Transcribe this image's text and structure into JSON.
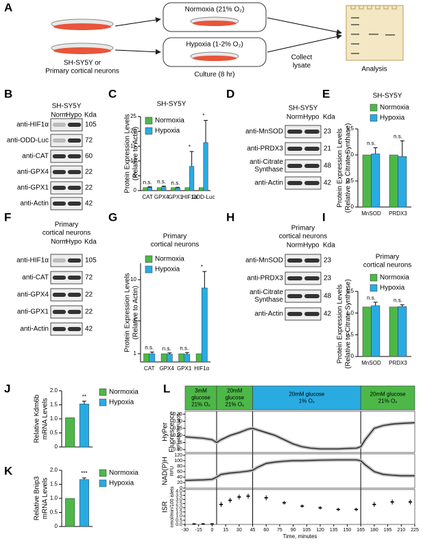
{
  "panel_labels": [
    "A",
    "B",
    "C",
    "D",
    "E",
    "F",
    "G",
    "H",
    "I",
    "J",
    "K",
    "L"
  ],
  "schematic": {
    "source": [
      "SH-SY5Y or",
      "Primary cortical neurons"
    ],
    "conditions": [
      "Normoxia (21% O₂)",
      "Hypoxia (1-2% O₂)"
    ],
    "culture": "Culture (8 hr)",
    "collect": [
      "Collect",
      "lysate"
    ],
    "analysis": "Analysis"
  },
  "blots": [
    {
      "title": [
        "SH-SY5Y"
      ],
      "lanes": [
        "Norm",
        "Hypo"
      ],
      "unit": "Kda",
      "rows": [
        {
          "label": [
            "anti-HIF1α"
          ],
          "kda": "105"
        },
        {
          "label": [
            "anti-ODD-Luc"
          ],
          "kda": "72"
        },
        {
          "label": [
            "anti-CAT"
          ],
          "kda": "60"
        },
        {
          "label": [
            "anti-GPX4"
          ],
          "kda": "22"
        },
        {
          "label": [
            "anti-GPX1"
          ],
          "kda": "22"
        },
        {
          "label": [
            "anti-Actin"
          ],
          "kda": "42"
        }
      ]
    },
    {
      "title": [
        "SH-SY5Y"
      ],
      "lanes": [
        "Norm",
        "Hypo"
      ],
      "unit": "Kda",
      "rows": [
        {
          "label": [
            "anti-MnSOD"
          ],
          "kda": "23"
        },
        {
          "label": [
            "anti-PRDX3"
          ],
          "kda": "21"
        },
        {
          "label": [
            "anti-Citrate",
            "Synthase"
          ],
          "kda": "48"
        },
        {
          "label": [
            "anti-Actin"
          ],
          "kda": "42"
        }
      ]
    },
    {
      "title": [
        "Primary",
        "cortical neurons"
      ],
      "lanes": [
        "Norm",
        "Hypo"
      ],
      "unit": "Kda",
      "rows": [
        {
          "label": [
            "anti-HIF1α"
          ],
          "kda": "105"
        },
        {
          "label": [
            "anti-CAT"
          ],
          "kda": "72"
        },
        {
          "label": [
            "anti-GPX4"
          ],
          "kda": "22"
        },
        {
          "label": [
            "anti-GPX1"
          ],
          "kda": "22"
        },
        {
          "label": [
            "anti-Actin"
          ],
          "kda": "42"
        }
      ]
    },
    {
      "title": [
        "Primary",
        "cortical neurons"
      ],
      "lanes": [
        "Norm",
        "Hypo"
      ],
      "unit": "Kda",
      "rows": [
        {
          "label": [
            "anti-MnSOD"
          ],
          "kda": "23"
        },
        {
          "label": [
            "anti-PRDX3"
          ],
          "kda": "23"
        },
        {
          "label": [
            "anti-Citrate",
            "Synthase"
          ],
          "kda": "48"
        },
        {
          "label": [
            "anti-Actin"
          ],
          "kda": "42"
        }
      ]
    }
  ],
  "chart_data": [
    {
      "type": "bar",
      "title": [
        "SH-SY5Y"
      ],
      "ylabel": [
        "Protein Expression Levels",
        "(Relative to Actin)"
      ],
      "categories": [
        "CAT",
        "GPX4",
        "GPX1",
        "HIF1α",
        "ODD-Luc"
      ],
      "series": [
        {
          "name": "Normoxia",
          "color": "#4db848",
          "values": [
            1,
            1,
            1,
            1,
            1
          ]
        },
        {
          "name": "Hypoxia",
          "color": "#29abe2",
          "values": [
            1.1,
            1.2,
            0.9,
            8.2,
            16.2
          ],
          "errors": [
            0.2,
            0.3,
            0.2,
            5,
            7.5
          ]
        }
      ],
      "annotations": [
        "n.s.",
        "n.s.",
        "n.s.",
        "*",
        "*"
      ],
      "ylim": [
        0,
        25
      ],
      "yticks": [
        0,
        5,
        10,
        15,
        20,
        25
      ]
    },
    {
      "type": "bar",
      "title": [
        "SH-SY5Y"
      ],
      "ylabel": [
        "Protein Expression Levels",
        "(Relative to Citrate Synthase)"
      ],
      "categories": [
        "MnSOD",
        "PRDX3"
      ],
      "series": [
        {
          "name": "Normoxia",
          "color": "#4db848",
          "values": [
            1,
            1
          ]
        },
        {
          "name": "Hypoxia",
          "color": "#29abe2",
          "values": [
            1.02,
            0.97
          ],
          "errors": [
            0.12,
            0.3
          ]
        }
      ],
      "annotations": [
        "n.s.",
        "n.s."
      ],
      "ylim": [
        0,
        1.5
      ],
      "yticks": [
        0,
        0.5,
        {
          "value": 1,
          "label": "1.0"
        },
        1.5
      ]
    },
    {
      "type": "bar",
      "title": [
        "Primary",
        "cortical neurons"
      ],
      "ylabel": [
        "Protein Expression Levels",
        "(Relative to Actin)"
      ],
      "categories": [
        "CAT",
        "GPX4",
        "GPX1",
        "HIF1α"
      ],
      "series": [
        {
          "name": "Normoxia",
          "color": "#4db848",
          "values": [
            1,
            1,
            1,
            1
          ]
        },
        {
          "name": "Hypoxia",
          "color": "#29abe2",
          "values": [
            1,
            0.95,
            0.95,
            9
          ],
          "errors": [
            0.2,
            0.15,
            0.2,
            2
          ]
        }
      ],
      "annotations": [
        "n.s.",
        "n.s.",
        "n.s.",
        "*"
      ],
      "ylim": [
        0,
        12
      ],
      "yticks": [
        1,
        5,
        10
      ]
    },
    {
      "type": "bar",
      "title": [
        "Primary",
        "cortical neurons"
      ],
      "ylabel": [
        "Protein Expression Levels",
        "(Relative to Citrate Synthase)"
      ],
      "categories": [
        "MnSOD",
        "PRDX3"
      ],
      "series": [
        {
          "name": "Normoxia",
          "color": "#4db848",
          "values": [
            1.14,
            1.14
          ]
        },
        {
          "name": "Hypoxia",
          "color": "#29abe2",
          "values": [
            1.17,
            1.15
          ],
          "errors": [
            0.08,
            0.04
          ]
        }
      ],
      "annotations": [
        "n.s.",
        "n.s."
      ],
      "ylim": [
        0,
        1.5
      ],
      "yticks": [
        0,
        0.5,
        {
          "value": 1,
          "label": "1.0"
        },
        1.5
      ]
    },
    {
      "type": "bar",
      "ylabel": [
        "Relative Kdm6b",
        "mRNA Levels"
      ],
      "series": [
        {
          "name": "Normoxia",
          "color": "#4db848",
          "values": [
            1.04
          ]
        },
        {
          "name": "Hypoxia",
          "color": "#29abe2",
          "values": [
            1.53
          ],
          "errors": [
            0.1
          ]
        }
      ],
      "annotations": [
        "**"
      ],
      "ylim": [
        0,
        2
      ],
      "yticks": [
        0,
        0.5,
        {
          "value": 1,
          "label": "1.0"
        },
        1.5,
        {
          "value": 2,
          "label": "2.0"
        }
      ]
    },
    {
      "type": "bar",
      "ylabel": [
        "Relative Bnip3",
        "mRNA Levels"
      ],
      "series": [
        {
          "name": "Normoxia",
          "color": "#4db848",
          "values": [
            1
          ]
        },
        {
          "name": "Hypoxia",
          "color": "#29abe2",
          "values": [
            1.67
          ],
          "errors": [
            0.06
          ]
        }
      ],
      "annotations": [
        "***"
      ],
      "ylim": [
        0,
        2
      ],
      "yticks": [
        0,
        0.5,
        {
          "value": 1,
          "label": "1.0"
        },
        1.5,
        {
          "value": 2,
          "label": "2.0"
        }
      ]
    },
    {
      "type": "timecourse",
      "xlabel": "Time, minutes",
      "xlim": [
        -30,
        225
      ],
      "xticks": [
        -30,
        -15,
        0,
        15,
        30,
        45,
        60,
        75,
        90,
        105,
        120,
        135,
        150,
        165,
        180,
        195,
        210,
        225
      ],
      "conditions": [
        {
          "label": [
            "3mM",
            "glucose",
            "21% O₂"
          ],
          "start": -30,
          "end": 5,
          "color": "#4db848"
        },
        {
          "label": [
            "20mM",
            "glucose",
            "21% O₂"
          ],
          "start": 5,
          "end": 45,
          "color": "#4db848"
        },
        {
          "label": [
            "20mM glucose",
            "1% O₂"
          ],
          "start": 45,
          "end": 165,
          "color": "#29abe2"
        },
        {
          "label": [
            "20mM glucose",
            "21% O₂"
          ],
          "start": 165,
          "end": 225,
          "color": "#4db848"
        }
      ],
      "subplots": [
        {
          "type": "line",
          "ylabel": [
            "HyPer",
            "Fluorescence",
            "RFU480/RFU405"
          ],
          "ylim": [
            0.08,
            0.37
          ],
          "yticks": [
            {
              "value": 0.1,
              "label": "0.10"
            },
            0.15,
            {
              "value": 0.2,
              "label": "0.20"
            },
            0.25,
            {
              "value": 0.3,
              "label": "0.30"
            },
            0.35
          ],
          "x": [
            -30,
            -20,
            -10,
            0,
            5,
            10,
            20,
            30,
            40,
            45,
            50,
            60,
            70,
            80,
            90,
            100,
            110,
            120,
            130,
            140,
            150,
            160,
            165,
            170,
            180,
            190,
            200,
            210,
            225
          ],
          "values": [
            0.19,
            0.185,
            0.18,
            0.17,
            0.15,
            0.17,
            0.2,
            0.22,
            0.245,
            0.25,
            0.24,
            0.22,
            0.2,
            0.17,
            0.14,
            0.12,
            0.11,
            0.105,
            0.105,
            0.105,
            0.108,
            0.11,
            0.12,
            0.17,
            0.25,
            0.27,
            0.28,
            0.285,
            0.29
          ]
        },
        {
          "type": "line",
          "ylabel": [
            "NAD(P)H",
            "RFU"
          ],
          "ylim": [
            0,
            125
          ],
          "yticks": [
            0,
            20,
            40,
            60,
            80,
            100,
            120
          ],
          "x": [
            -30,
            -10,
            0,
            5,
            10,
            20,
            30,
            40,
            45,
            50,
            60,
            70,
            80,
            90,
            100,
            120,
            140,
            160,
            165,
            170,
            180,
            190,
            200,
            210,
            225
          ],
          "values": [
            28,
            30,
            32,
            40,
            50,
            55,
            58,
            62,
            65,
            75,
            90,
            95,
            98,
            100,
            100,
            102,
            103,
            103,
            100,
            85,
            60,
            50,
            47,
            45,
            45
          ]
        },
        {
          "type": "errorpoints",
          "ylabel": [
            "ISR",
            "nmol/min/100 islets"
          ],
          "ylim": [
            0,
            4.2
          ],
          "yticks": [
            {
              "value": 0,
              "label": "0.0"
            },
            0.5,
            {
              "value": 1,
              "label": "1.0"
            },
            1.5,
            {
              "value": 2,
              "label": "2.0"
            },
            2.5,
            {
              "value": 3,
              "label": "3.0"
            },
            3.5,
            {
              "value": 4,
              "label": "4.0"
            }
          ],
          "x": [
            -20,
            -10,
            0,
            10,
            20,
            30,
            40,
            60,
            80,
            100,
            120,
            140,
            160,
            180,
            200,
            220
          ],
          "values": [
            0.05,
            0.05,
            0.05,
            2.4,
            2.9,
            3.3,
            3.4,
            3.2,
            2.6,
            2.2,
            2.0,
            1.8,
            1.8,
            2.4,
            2.7,
            2.7
          ],
          "errors": [
            0.1,
            0.1,
            0.1,
            0.3,
            0.3,
            0.3,
            0.3,
            0.3,
            0.2,
            0.2,
            0.2,
            0.2,
            0.2,
            0.3,
            0.3,
            0.3
          ]
        }
      ]
    }
  ]
}
